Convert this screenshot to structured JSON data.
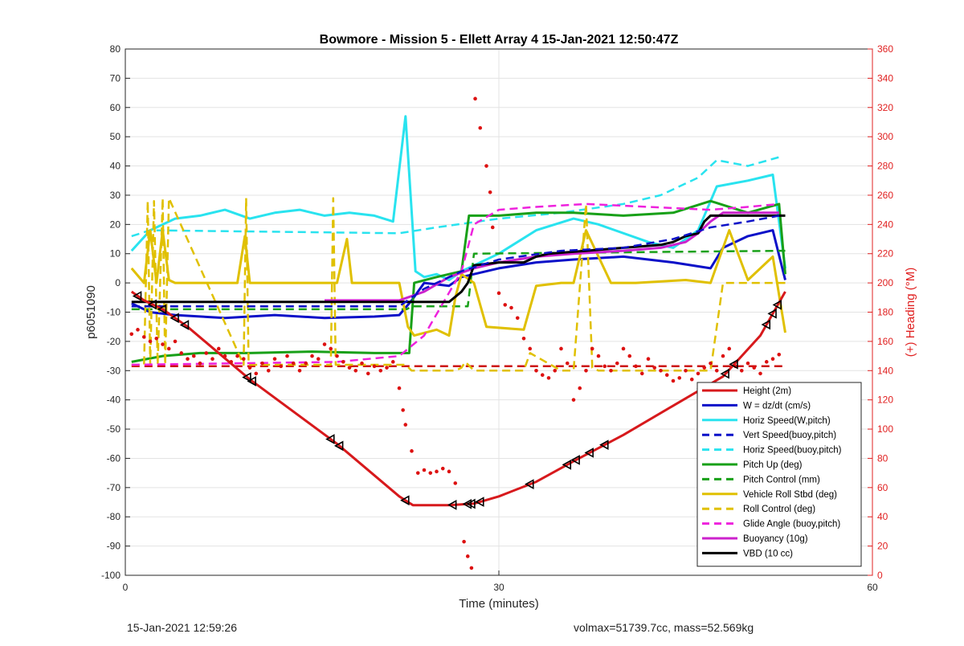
{
  "chart_data": {
    "type": "line",
    "title": "Bowmore - Mission 5 - Ellett Array 4 15-Jan-2021 12:50:47Z",
    "xlabel": "Time (minutes)",
    "ylabel": "p6051090",
    "y2label": "(+) Heading (°M)",
    "xlim": [
      0,
      60
    ],
    "ylim": [
      -100,
      80
    ],
    "y2lim": [
      0,
      360
    ],
    "xticks": [
      0,
      30,
      60
    ],
    "yticks": [
      80,
      70,
      60,
      50,
      40,
      30,
      20,
      10,
      0,
      -10,
      -20,
      -30,
      -40,
      -50,
      -60,
      -70,
      -80,
      -90,
      -100
    ],
    "y2ticks": [
      360,
      340,
      320,
      300,
      280,
      260,
      240,
      220,
      200,
      180,
      160,
      140,
      120,
      100,
      80,
      60,
      40,
      20,
      0
    ],
    "grid": "x and y major",
    "legend_position": "bottom-right",
    "series": [
      {
        "name": "Height (2m)",
        "color": "#d7191c",
        "style": "solid",
        "x": [
          0.5,
          1.5,
          3,
          5,
          10,
          17,
          22,
          23.1,
          26,
          28,
          30,
          33,
          36,
          40,
          44,
          48,
          51,
          53
        ],
        "y": [
          -3,
          -6,
          -9,
          -15,
          -33,
          -55,
          -73,
          -76,
          -76,
          -75.5,
          -73,
          -68,
          -61,
          -52,
          -42,
          -32,
          -18,
          -3
        ]
      },
      {
        "name": "W = dz/dt (cm/s)",
        "color": "#0b10c8",
        "style": "solid",
        "x": [
          0.5,
          2,
          4,
          8,
          12,
          16,
          20,
          22,
          23,
          24,
          26,
          27,
          28,
          30,
          33,
          36,
          40,
          44,
          47,
          48,
          50,
          52,
          53
        ],
        "y": [
          -7,
          -10,
          -11,
          -12,
          -11,
          -12,
          -11.5,
          -11,
          -6,
          0,
          -1,
          2,
          3,
          5,
          7,
          8,
          9,
          7,
          5,
          12,
          16,
          18,
          1
        ]
      },
      {
        "name": "Horiz Speed(W,pitch)",
        "color": "#29e3ef",
        "style": "solid",
        "x": [
          0.5,
          2,
          4,
          6,
          8,
          10,
          12,
          14,
          16,
          18,
          20,
          21.5,
          22.5,
          23.3,
          24,
          25,
          26,
          27,
          28,
          30,
          33,
          36,
          38,
          42,
          44,
          46,
          47.5,
          50,
          52,
          53
        ],
        "y": [
          11,
          18,
          22,
          23,
          25,
          22,
          24,
          25,
          23,
          24,
          23,
          21,
          57,
          4,
          2,
          3,
          1,
          4,
          6,
          10,
          18,
          22,
          20,
          14,
          12,
          18,
          33,
          35,
          37,
          5
        ]
      },
      {
        "name": "Vert Speed(buoy,pitch)",
        "color": "#0b10c8",
        "style": "dashed",
        "x": [
          0.5,
          22,
          24,
          27,
          30,
          35,
          40,
          44,
          47,
          50,
          52.5
        ],
        "y": [
          -8,
          -8,
          -2,
          4,
          8,
          11,
          12,
          15,
          19,
          21,
          23
        ]
      },
      {
        "name": "Horiz Speed(buoy,pitch)",
        "color": "#29e3ef",
        "style": "dashed",
        "x": [
          0.5,
          2,
          22,
          25,
          30,
          35,
          40,
          43,
          46,
          47.5,
          50,
          52.5
        ],
        "y": [
          16,
          18,
          17,
          19,
          22,
          24,
          27,
          30,
          36,
          42,
          40,
          43
        ]
      },
      {
        "name": "Pitch Up (deg)",
        "color": "#18a018",
        "style": "solid",
        "x": [
          0.5,
          3,
          6,
          10,
          15,
          20,
          22.8,
          23.2,
          25,
          27,
          27.6,
          28,
          30,
          33,
          36,
          40,
          44,
          47,
          50,
          52.5,
          53
        ],
        "y": [
          -27,
          -25,
          -24,
          -24,
          -23.5,
          -24,
          -24,
          0,
          2,
          4,
          23,
          23,
          23,
          24,
          24,
          23,
          24,
          28,
          24,
          27,
          3
        ]
      },
      {
        "name": "Pitch Control (mm)",
        "color": "#18a018",
        "style": "dashed",
        "x": [
          0.5,
          22.6,
          23,
          27.5,
          28,
          53
        ],
        "y": [
          -9,
          -9,
          -8,
          -8,
          10,
          11
        ]
      },
      {
        "name": "Vehicle Roll Stbd (deg)",
        "color": "#e0c000",
        "style": "solid",
        "x": [
          0.5,
          1.5,
          2,
          2.5,
          3,
          3.5,
          4,
          4.5,
          5,
          9,
          9.6,
          10,
          17,
          17.8,
          18.2,
          22,
          22.7,
          23.2,
          25,
          26,
          26.5,
          27,
          28,
          29,
          32,
          33,
          35,
          36,
          37,
          39,
          41,
          45,
          47,
          48.5,
          50,
          52,
          53
        ],
        "y": [
          5,
          0,
          18,
          0,
          18,
          1,
          0,
          0,
          0,
          0,
          16,
          0,
          0,
          15,
          0,
          0,
          -15,
          -18,
          -16,
          -18,
          -5,
          3,
          0,
          -15,
          -16,
          -1,
          0,
          0,
          18,
          0,
          0,
          1,
          0,
          18,
          1,
          9,
          -17
        ]
      },
      {
        "name": "Roll Control (deg)",
        "color": "#e0c000",
        "style": "dashed",
        "x": [
          0.5,
          1.5,
          1.8,
          2,
          2.3,
          2.6,
          3,
          3.2,
          3.5,
          9.5,
          9.7,
          9.9,
          16.5,
          16.7,
          16.9,
          22.5,
          23,
          26.5,
          27,
          27.3,
          28,
          32,
          32.5,
          35,
          36,
          37,
          37.5,
          38,
          44,
          47,
          48,
          53
        ],
        "y": [
          -28,
          -28,
          28,
          -28,
          28,
          -28,
          29,
          -28,
          29,
          -28,
          29,
          -28,
          -28,
          29,
          -28,
          -28,
          -30,
          -30,
          -29,
          -27,
          -30,
          -30,
          -24,
          -30,
          -30,
          27,
          -29,
          -30,
          -30,
          -30,
          0,
          0
        ]
      },
      {
        "name": "Glide Angle (buoy,pitch)",
        "color": "#ee22dd",
        "style": "dashed",
        "x": [
          0.5,
          17,
          22,
          24,
          27,
          28,
          30,
          33,
          37,
          42,
          47,
          50,
          52.5
        ],
        "y": [
          -28,
          -27,
          -25,
          -18,
          4,
          20,
          25,
          26,
          27,
          26,
          25,
          26,
          27
        ]
      },
      {
        "name": "Buoyancy (10g)",
        "color": "#cc22cc",
        "style": "solid",
        "x": [
          16,
          22,
          24,
          26,
          28,
          30,
          33,
          36,
          40,
          43,
          45,
          46,
          47,
          48,
          50,
          52.5
        ],
        "y": [
          -6,
          -6,
          -3,
          2,
          5,
          7,
          9,
          10,
          11,
          12,
          14,
          17,
          21,
          24,
          24,
          24
        ]
      },
      {
        "name": "VBD (10 cc)",
        "color": "#000000",
        "style": "solid",
        "x": [
          0.5,
          26,
          27,
          27.5,
          28,
          30,
          32,
          33,
          34,
          37,
          43,
          44,
          45,
          46,
          46.5,
          47,
          53
        ],
        "y": [
          -6.5,
          -6.5,
          -3,
          0,
          6,
          7,
          7,
          9,
          10,
          11,
          13,
          14,
          16,
          17,
          21,
          23,
          23
        ]
      },
      {
        "name": "Heading",
        "color": "#cc1111",
        "style": "dashed",
        "axis": "right",
        "x": [
          0.5,
          53
        ],
        "y": [
          143,
          143
        ]
      }
    ],
    "heading_points": [
      [
        0.5,
        165
      ],
      [
        1,
        168
      ],
      [
        1.5,
        163
      ],
      [
        2,
        160
      ],
      [
        2.5,
        162
      ],
      [
        3,
        158
      ],
      [
        3.5,
        155
      ],
      [
        4,
        160
      ],
      [
        4.5,
        152
      ],
      [
        5,
        148
      ],
      [
        5.5,
        150
      ],
      [
        6,
        145
      ],
      [
        6.5,
        152
      ],
      [
        7,
        148
      ],
      [
        7.5,
        155
      ],
      [
        8,
        150
      ],
      [
        8.5,
        146
      ],
      [
        9,
        150
      ],
      [
        9.5,
        148
      ],
      [
        10,
        142
      ],
      [
        10.5,
        138
      ],
      [
        11,
        145
      ],
      [
        11.5,
        140
      ],
      [
        12,
        148
      ],
      [
        12.5,
        143
      ],
      [
        13,
        150
      ],
      [
        13.5,
        145
      ],
      [
        14,
        140
      ],
      [
        14.5,
        145
      ],
      [
        15,
        150
      ],
      [
        15.5,
        148
      ],
      [
        16,
        158
      ],
      [
        16.5,
        155
      ],
      [
        17,
        150
      ],
      [
        17.5,
        146
      ],
      [
        18,
        142
      ],
      [
        18.5,
        140
      ],
      [
        19,
        145
      ],
      [
        19.5,
        138
      ],
      [
        20,
        143
      ],
      [
        20.5,
        140
      ],
      [
        21,
        142
      ],
      [
        21.5,
        146
      ],
      [
        22,
        128
      ],
      [
        22.3,
        113
      ],
      [
        22.5,
        103
      ],
      [
        23,
        85
      ],
      [
        23.5,
        70
      ],
      [
        24,
        72
      ],
      [
        24.5,
        70
      ],
      [
        25,
        71
      ],
      [
        25.5,
        73
      ],
      [
        26,
        71
      ],
      [
        26.5,
        63
      ],
      [
        27.2,
        23
      ],
      [
        27.5,
        13
      ],
      [
        27.8,
        5
      ],
      [
        28.1,
        326
      ],
      [
        28.5,
        306
      ],
      [
        29,
        280
      ],
      [
        29.3,
        262
      ],
      [
        29.5,
        238
      ],
      [
        30,
        193
      ],
      [
        30.5,
        185
      ],
      [
        31,
        183
      ],
      [
        31.5,
        176
      ],
      [
        32,
        162
      ],
      [
        32.5,
        155
      ],
      [
        33,
        140
      ],
      [
        33.5,
        137
      ],
      [
        34,
        135
      ],
      [
        34.5,
        140
      ],
      [
        35,
        155
      ],
      [
        35.5,
        145
      ],
      [
        36,
        120
      ],
      [
        36.5,
        128
      ],
      [
        37,
        140
      ],
      [
        37.5,
        155
      ],
      [
        38,
        150
      ],
      [
        38.5,
        143
      ],
      [
        39,
        140
      ],
      [
        39.5,
        145
      ],
      [
        40,
        155
      ],
      [
        40.5,
        150
      ],
      [
        41,
        143
      ],
      [
        41.5,
        138
      ],
      [
        42,
        148
      ],
      [
        42.5,
        142
      ],
      [
        43,
        140
      ],
      [
        43.5,
        137
      ],
      [
        44,
        133
      ],
      [
        44.5,
        135
      ],
      [
        45,
        140
      ],
      [
        45.5,
        134
      ],
      [
        46,
        138
      ],
      [
        46.5,
        142
      ],
      [
        47,
        145
      ],
      [
        47.5,
        140
      ],
      [
        48,
        150
      ],
      [
        48.5,
        155
      ],
      [
        49,
        143
      ],
      [
        49.5,
        140
      ],
      [
        50,
        145
      ],
      [
        50.5,
        142
      ],
      [
        51,
        138
      ],
      [
        51.5,
        146
      ],
      [
        52,
        148
      ],
      [
        52.5,
        151
      ]
    ],
    "height_markers": [
      1,
      2.2,
      3,
      4,
      4.8,
      9.8,
      10.2,
      16.5,
      17.2,
      22.5,
      26.3,
      27.5,
      27.8,
      28.5,
      32.5,
      35.5,
      36.2,
      37.3,
      38.5,
      46.3,
      48.2,
      48.9,
      51.5,
      52,
      52.4
    ]
  },
  "footer": {
    "left": "15-Jan-2021 12:59:26",
    "right": "volmax=51739.7cc, mass=52.569kg"
  }
}
